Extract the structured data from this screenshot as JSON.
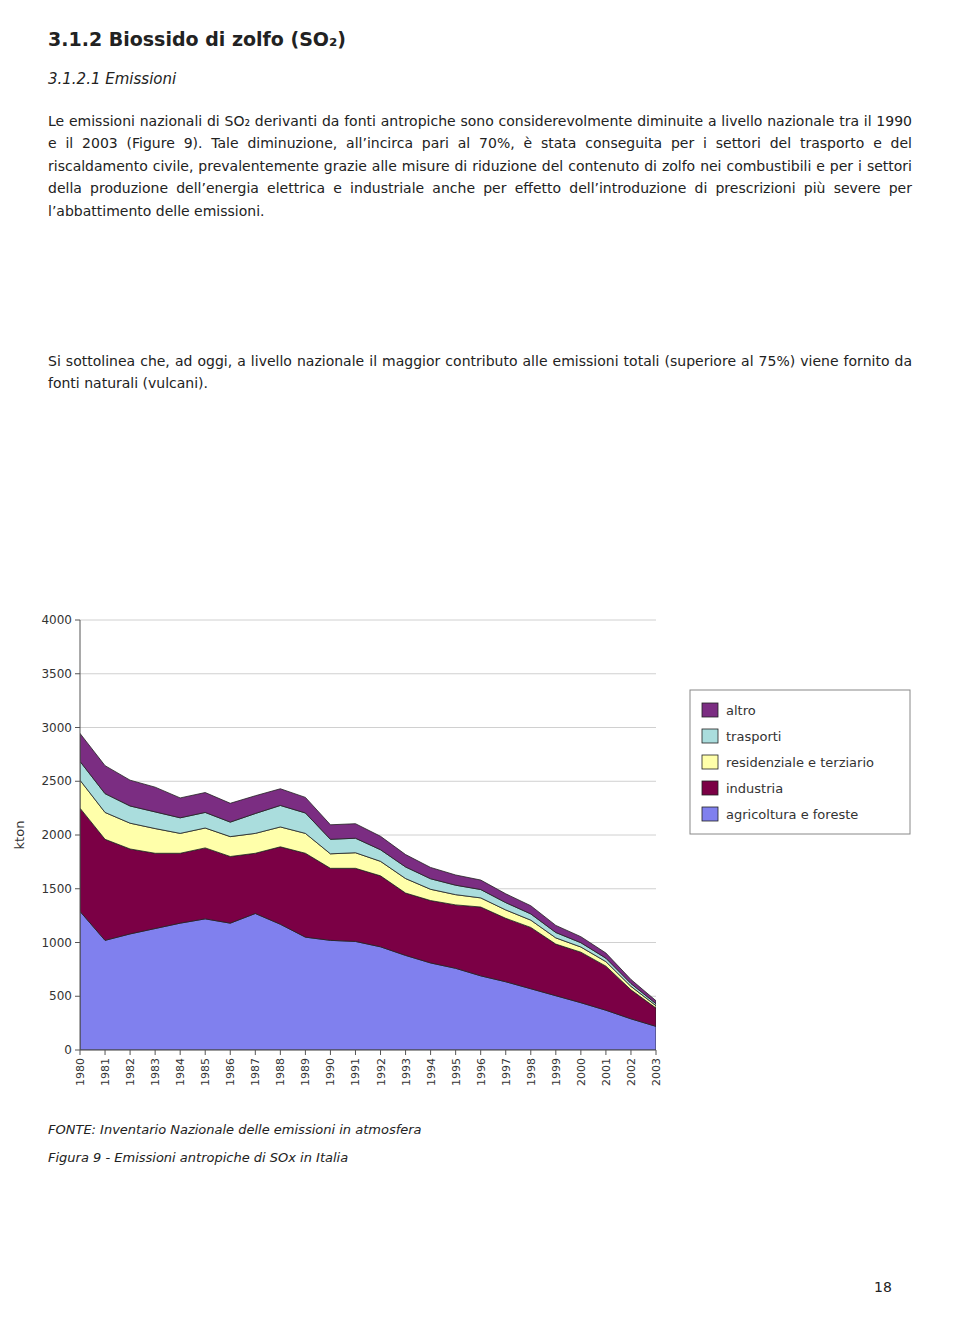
{
  "title": "3.1.2 Biossido di zolfo (SO₂)",
  "subtitle": "3.1.2.1 Emissioni",
  "body": [
    "Le emissioni nazionali di SO₂ derivanti da fonti antropiche sono considerevolmente diminuite a livello nazionale tra il 1990 e il 2003 (Figure 9). Tale diminuzione, all’incirca pari al 70%, è stata conseguita per i settori del trasporto e del riscaldamento civile, prevalentemente grazie alle misure di riduzione del contenuto di zolfo nei combustibili e per i settori della produzione dell’energia elettrica e industriale anche per effetto dell’introduzione di prescrizioni più severe per l’abbattimento delle emissioni.",
    "Si sottolinea che, ad oggi, a livello nazionale il maggior contributo alle emissioni totali (superiore al 75%) viene fornito da fonti naturali (vulcani)."
  ],
  "source": "FONTE: Inventario Nazionale delle emissioni in atmosfera",
  "caption": "Figura 9 - Emissioni antropiche di SOx in Italia",
  "page_number": "18",
  "chart_data": {
    "type": "area",
    "stacked": true,
    "x": [
      1980,
      1981,
      1982,
      1983,
      1984,
      1985,
      1986,
      1987,
      1988,
      1989,
      1990,
      1991,
      1992,
      1993,
      1994,
      1995,
      1996,
      1997,
      1998,
      1999,
      2000,
      2001,
      2002,
      2003
    ],
    "series": [
      {
        "name": "agricoltura e foreste",
        "color": "#8080EE",
        "values": [
          1290,
          1020,
          1080,
          1130,
          1180,
          1220,
          1180,
          1270,
          1170,
          1050,
          1020,
          1010,
          960,
          880,
          810,
          760,
          690,
          635,
          570,
          505,
          440,
          370,
          290,
          220
        ]
      },
      {
        "name": "industria",
        "color": "#7B0045",
        "values": [
          960,
          940,
          790,
          700,
          650,
          660,
          620,
          560,
          720,
          780,
          670,
          680,
          660,
          580,
          580,
          590,
          640,
          590,
          570,
          480,
          470,
          410,
          270,
          170
        ]
      },
      {
        "name": "residenziale e terziario",
        "color": "#FFFFAA",
        "values": [
          260,
          250,
          240,
          230,
          185,
          185,
          185,
          185,
          185,
          185,
          135,
          145,
          135,
          135,
          105,
          95,
          85,
          78,
          68,
          58,
          48,
          42,
          32,
          22
        ]
      },
      {
        "name": "trasporti",
        "color": "#AADDDD",
        "values": [
          175,
          175,
          160,
          155,
          145,
          145,
          135,
          185,
          200,
          190,
          135,
          135,
          108,
          108,
          98,
          88,
          78,
          68,
          58,
          50,
          40,
          32,
          26,
          18
        ]
      },
      {
        "name": "altro",
        "color": "#7B2D82",
        "values": [
          260,
          260,
          240,
          230,
          185,
          185,
          175,
          165,
          155,
          145,
          135,
          135,
          125,
          115,
          105,
          95,
          88,
          82,
          76,
          66,
          56,
          48,
          38,
          28
        ]
      }
    ],
    "ylabel": "kton",
    "xlim": [
      1980,
      2003
    ],
    "xticks": [
      1980,
      1981,
      1982,
      1983,
      1984,
      1985,
      1986,
      1987,
      1988,
      1989,
      1990,
      1991,
      1992,
      1993,
      1994,
      1995,
      1996,
      1997,
      1998,
      1999,
      2000,
      2001,
      2002,
      2003
    ],
    "ylim": [
      0,
      4000
    ],
    "yticks": [
      0,
      500,
      1000,
      1500,
      2000,
      2500,
      3000,
      3500,
      4000
    ],
    "grid": true,
    "legend": "right"
  }
}
